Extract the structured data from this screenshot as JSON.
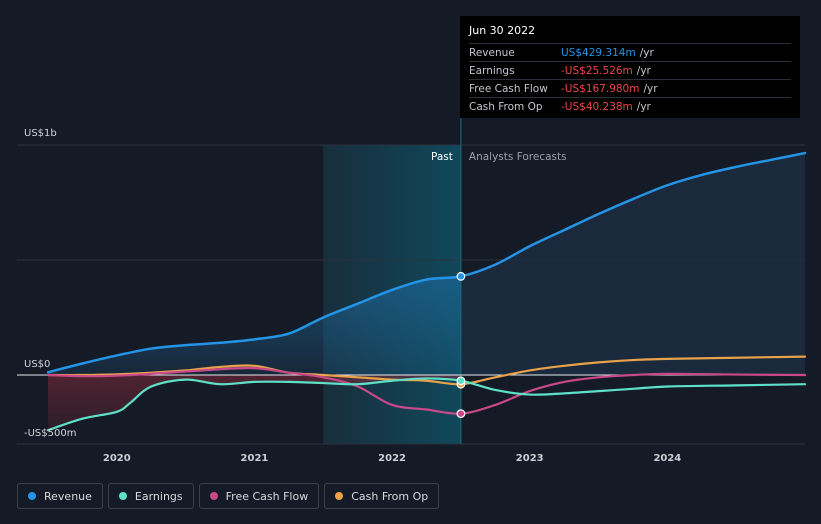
{
  "tooltip": {
    "date": "Jun 30 2022",
    "rows": [
      {
        "label": "Revenue",
        "value": "US$429.314m",
        "unit": "/yr",
        "color": "#2394e6"
      },
      {
        "label": "Earnings",
        "value": "-US$25.526m",
        "unit": "/yr",
        "color": "#f04646"
      },
      {
        "label": "Free Cash Flow",
        "value": "-US$167.980m",
        "unit": "/yr",
        "color": "#f04646"
      },
      {
        "label": "Cash From Op",
        "value": "-US$40.238m",
        "unit": "/yr",
        "color": "#f04646"
      }
    ]
  },
  "legend": [
    {
      "label": "Revenue",
      "color": "#2394e6"
    },
    {
      "label": "Earnings",
      "color": "#5ee0c8"
    },
    {
      "label": "Free Cash Flow",
      "color": "#c8488a"
    },
    {
      "label": "Cash From Op",
      "color": "#e8a24a"
    }
  ],
  "chart_data": {
    "type": "line",
    "y_unit_labels": {
      "top": "US$1b",
      "zero": "US$0",
      "bottom": "-US$500m"
    },
    "ylim": [
      -300,
      1000
    ],
    "xlim": [
      2019.5,
      2025.0
    ],
    "x_ticks": [
      "2020",
      "2021",
      "2022",
      "2023",
      "2024"
    ],
    "x_tick_values": [
      2020,
      2021,
      2022,
      2023,
      2024
    ],
    "past_label": "Past",
    "forecast_label": "Analysts Forecasts",
    "past_region_start": 2021.5,
    "divider_x": 2022.5,
    "highlight_x": 2022.5,
    "series": [
      {
        "name": "Revenue",
        "color": "#2394e6",
        "x": [
          2019.5,
          2019.75,
          2020.0,
          2020.25,
          2020.5,
          2020.75,
          2021.0,
          2021.25,
          2021.5,
          2021.75,
          2022.0,
          2022.25,
          2022.5,
          2022.75,
          2023.0,
          2023.25,
          2023.5,
          2023.75,
          2024.0,
          2024.25,
          2024.5,
          2024.75,
          2025.0
        ],
        "values": [
          12,
          50,
          85,
          115,
          130,
          140,
          155,
          180,
          250,
          310,
          370,
          415,
          429,
          480,
          560,
          630,
          700,
          765,
          825,
          870,
          905,
          935,
          965
        ]
      },
      {
        "name": "Earnings",
        "color": "#5ee0c8",
        "x": [
          2019.5,
          2019.75,
          2020.0,
          2020.1,
          2020.25,
          2020.5,
          2020.75,
          2021.0,
          2021.25,
          2021.5,
          2021.75,
          2022.0,
          2022.25,
          2022.5,
          2022.75,
          2023.0,
          2023.25,
          2023.5,
          2023.75,
          2024.0,
          2024.5,
          2025.0
        ],
        "values": [
          -240,
          -190,
          -160,
          -120,
          -50,
          -20,
          -40,
          -30,
          -30,
          -35,
          -40,
          -25,
          -15,
          -25,
          -65,
          -85,
          -80,
          -70,
          -60,
          -50,
          -45,
          -40
        ]
      },
      {
        "name": "Free Cash Flow",
        "color": "#c8488a",
        "x": [
          2019.5,
          2019.75,
          2020.0,
          2020.25,
          2020.5,
          2020.75,
          2021.0,
          2021.25,
          2021.5,
          2021.75,
          2022.0,
          2022.25,
          2022.5,
          2022.75,
          2023.0,
          2023.25,
          2023.5,
          2023.75,
          2024.0,
          2024.5,
          2025.0
        ],
        "values": [
          0,
          -5,
          -3,
          5,
          15,
          25,
          30,
          10,
          -10,
          -50,
          -130,
          -150,
          -168,
          -130,
          -70,
          -30,
          -10,
          0,
          5,
          2,
          0
        ]
      },
      {
        "name": "Cash From Op",
        "color": "#e8a24a",
        "x": [
          2019.5,
          2019.75,
          2020.0,
          2020.25,
          2020.5,
          2020.75,
          2021.0,
          2021.25,
          2021.5,
          2021.75,
          2022.0,
          2022.25,
          2022.5,
          2022.75,
          2023.0,
          2023.25,
          2023.5,
          2023.75,
          2024.0,
          2024.5,
          2025.0
        ],
        "values": [
          0,
          0,
          3,
          10,
          20,
          35,
          40,
          10,
          0,
          -10,
          -20,
          -25,
          -40,
          -10,
          20,
          40,
          55,
          65,
          70,
          75,
          80
        ]
      }
    ]
  }
}
